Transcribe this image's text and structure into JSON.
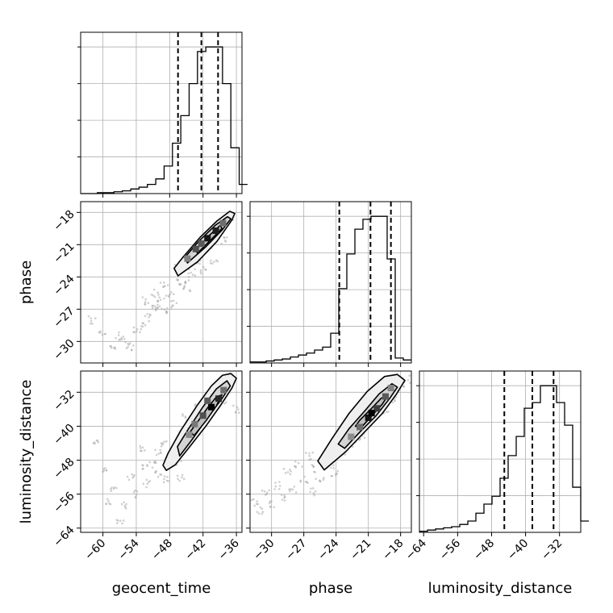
{
  "chart_data": {
    "type": "corner",
    "grid": true,
    "parameters": [
      {
        "name": "geocent_time",
        "range": [
          -64,
          -35
        ],
        "ticks": [
          -60,
          -54,
          -48,
          -42,
          -36
        ],
        "tick_labels": [
          "−60",
          "−54",
          "−48",
          "−42",
          "−36"
        ],
        "quantiles": [
          -46.5,
          -42.3,
          -39.3
        ],
        "histogram": {
          "bin_width": 1.5,
          "counts": [
            0,
            0,
            1,
            1,
            2,
            3,
            5,
            7,
            10,
            16,
            30,
            55,
            85,
            120,
            155,
            160,
            160,
            120,
            50,
            10
          ]
        }
      },
      {
        "name": "phase",
        "range": [
          -32,
          -17
        ],
        "ticks": [
          -30,
          -27,
          -24,
          -21,
          -18
        ],
        "tick_labels": [
          "−30",
          "−27",
          "−24",
          "−21",
          "−18"
        ],
        "quantiles": [
          -23.7,
          -20.8,
          -18.9
        ],
        "histogram": {
          "bin_width": 0.75,
          "counts": [
            1,
            1,
            2,
            3,
            4,
            6,
            8,
            10,
            13,
            16,
            30,
            75,
            110,
            135,
            145,
            148,
            148,
            105,
            5,
            3
          ]
        }
      },
      {
        "name": "luminosity_distance",
        "range": [
          -65,
          -27
        ],
        "ticks": [
          -64,
          -56,
          -48,
          -40,
          -32
        ],
        "tick_labels": [
          "−64",
          "−56",
          "−48",
          "−40",
          "−32"
        ],
        "quantiles": [
          -45,
          -38.4,
          -33.4
        ],
        "histogram": {
          "bin_width": 1.9,
          "counts": [
            1,
            2,
            3,
            4,
            5,
            7,
            10,
            17,
            25,
            32,
            48,
            68,
            85,
            110,
            115,
            130,
            130,
            115,
            95,
            40,
            10
          ]
        }
      }
    ],
    "pair_plots": [
      {
        "x": "geocent_time",
        "y": "phase",
        "scatter_samples": [
          [
            -44,
            -23.6
          ],
          [
            -46,
            -24.5
          ],
          [
            -48,
            -25.5
          ],
          [
            -50,
            -26.8
          ],
          [
            -52,
            -27.8
          ],
          [
            -54,
            -29
          ],
          [
            -56,
            -30
          ],
          [
            -58,
            -30.8
          ],
          [
            -60,
            -29
          ],
          [
            -62,
            -28
          ],
          [
            -47,
            -26.5
          ],
          [
            -49,
            -24.8
          ],
          [
            -51,
            -27
          ],
          [
            -53,
            -28.5
          ],
          [
            -55,
            -30.5
          ],
          [
            -45,
            -25.2
          ],
          [
            -43,
            -22.5
          ],
          [
            -41,
            -21
          ],
          [
            -39,
            -19.8
          ],
          [
            -37,
            -18.6
          ],
          [
            -42,
            -23.4
          ],
          [
            -40,
            -22.6
          ],
          [
            -38,
            -20.6
          ],
          [
            -50.5,
            -25.5
          ],
          [
            -48.5,
            -27
          ],
          [
            -57,
            -29.5
          ],
          [
            -46.5,
            -23.2
          ],
          [
            -52.5,
            -26.2
          ],
          [
            -44.5,
            -24.3
          ],
          [
            -49.5,
            -26.1
          ]
        ],
        "contours": [
          [
            [
              -46.5,
              -23.9
            ],
            [
              -43,
              -22.6
            ],
            [
              -39.5,
              -20.7
            ],
            [
              -36.8,
              -18.7
            ],
            [
              -36.3,
              -18.1
            ],
            [
              -37.2,
              -17.9
            ],
            [
              -39.5,
              -18.8
            ],
            [
              -42.5,
              -20.3
            ],
            [
              -45.5,
              -22.1
            ],
            [
              -47.2,
              -23.2
            ]
          ],
          [
            [
              -44.8,
              -22.7
            ],
            [
              -41.5,
              -21.2
            ],
            [
              -38.5,
              -19.6
            ],
            [
              -37,
              -18.6
            ],
            [
              -37.6,
              -18.4
            ],
            [
              -39.8,
              -19.2
            ],
            [
              -42.8,
              -20.7
            ],
            [
              -45.3,
              -22.2
            ]
          ],
          [
            [
              -43,
              -21.8
            ],
            [
              -40.5,
              -20.5
            ],
            [
              -38.6,
              -19.5
            ],
            [
              -38.9,
              -19.2
            ],
            [
              -40.8,
              -20.1
            ],
            [
              -43.3,
              -21.5
            ]
          ]
        ],
        "density_cells": [
          [
            -43.3,
            -21.4,
            0.6
          ],
          [
            -41.2,
            -20.4,
            0.9
          ],
          [
            -39.7,
            -19.7,
            0.85
          ],
          [
            -44.8,
            -22.3,
            0.35
          ],
          [
            -38.4,
            -19.0,
            0.45
          ],
          [
            -42.3,
            -20.9,
            0.55
          ]
        ]
      },
      {
        "x": "geocent_time",
        "y": "luminosity_distance",
        "scatter_samples": [
          [
            -48,
            -48
          ],
          [
            -50,
            -51
          ],
          [
            -52,
            -53.5
          ],
          [
            -54,
            -56
          ],
          [
            -56,
            -58.5
          ],
          [
            -58,
            -55
          ],
          [
            -60,
            -50
          ],
          [
            -61,
            -44
          ],
          [
            -53,
            -45.5
          ],
          [
            -49,
            -44
          ],
          [
            -45,
            -38
          ],
          [
            -43,
            -35.5
          ],
          [
            -41,
            -33.5
          ],
          [
            -39,
            -31
          ],
          [
            -37,
            -28.5
          ],
          [
            -36,
            -36
          ],
          [
            -55,
            -52
          ],
          [
            -51,
            -49
          ],
          [
            -47,
            -46
          ],
          [
            -46,
            -52
          ],
          [
            -50,
            -46
          ],
          [
            -44,
            -42
          ],
          [
            -57,
            -62
          ],
          [
            -59,
            -58
          ],
          [
            -52.5,
            -49.5
          ],
          [
            -48.5,
            -52.5
          ],
          [
            -46.5,
            -48.5
          ],
          [
            -42.5,
            -38
          ],
          [
            -40.5,
            -37.5
          ],
          [
            -38.5,
            -34
          ]
        ],
        "contours": [
          [
            [
              -48.6,
              -50.4
            ],
            [
              -47,
              -49.1
            ],
            [
              -44.5,
              -45
            ],
            [
              -41.5,
              -40
            ],
            [
              -38.8,
              -35
            ],
            [
              -36.8,
              -31
            ],
            [
              -36,
              -28.7
            ],
            [
              -37,
              -27.6
            ],
            [
              -38.5,
              -28
            ],
            [
              -40.5,
              -30.5
            ],
            [
              -43,
              -35
            ],
            [
              -46,
              -41
            ],
            [
              -48.3,
              -46.4
            ],
            [
              -49.2,
              -49.2
            ]
          ],
          [
            [
              -46.2,
              -47
            ],
            [
              -44,
              -43.2
            ],
            [
              -41.2,
              -38
            ],
            [
              -38.6,
              -33.5
            ],
            [
              -37.1,
              -30.5
            ],
            [
              -37.7,
              -29.3
            ],
            [
              -39.6,
              -31.2
            ],
            [
              -42.1,
              -35.6
            ],
            [
              -44.6,
              -40.6
            ],
            [
              -46.6,
              -44.8
            ]
          ],
          [
            [
              -43.6,
              -42.2
            ],
            [
              -41.4,
              -38.6
            ],
            [
              -39.6,
              -35.2
            ],
            [
              -38.6,
              -32.6
            ],
            [
              -39.6,
              -33.1
            ],
            [
              -41.2,
              -35.7
            ],
            [
              -43,
              -39
            ],
            [
              -44.3,
              -41.3
            ]
          ]
        ],
        "density_cells": [
          [
            -40.5,
            -35.5,
            1.0
          ],
          [
            -42.0,
            -37.5,
            0.6
          ],
          [
            -39.2,
            -33.5,
            0.8
          ],
          [
            -43.5,
            -39.5,
            0.4
          ],
          [
            -41.2,
            -34.0,
            0.55
          ],
          [
            -38.3,
            -31.5,
            0.45
          ],
          [
            -44.5,
            -42.0,
            0.3
          ]
        ]
      },
      {
        "x": "phase",
        "y": "luminosity_distance",
        "scatter_samples": [
          [
            -26,
            -50
          ],
          [
            -27,
            -52.5
          ],
          [
            -28,
            -55
          ],
          [
            -29,
            -57
          ],
          [
            -30,
            -58.5
          ],
          [
            -31,
            -60
          ],
          [
            -25,
            -47
          ],
          [
            -24,
            -45.5
          ],
          [
            -23,
            -43
          ],
          [
            -22,
            -41
          ],
          [
            -20,
            -36
          ],
          [
            -19,
            -33
          ],
          [
            -18,
            -30
          ],
          [
            -17.5,
            -29
          ],
          [
            -26.5,
            -47
          ],
          [
            -25.5,
            -53
          ],
          [
            -28.5,
            -51
          ],
          [
            -24.5,
            -49
          ],
          [
            -21.5,
            -42.5
          ],
          [
            -20.5,
            -38.5
          ],
          [
            -29.5,
            -54
          ],
          [
            -23.5,
            -46.5
          ],
          [
            -22.5,
            -44
          ],
          [
            -18.5,
            -33.5
          ],
          [
            -27.5,
            -49
          ],
          [
            -30.5,
            -56
          ],
          [
            -26.2,
            -55.5
          ],
          [
            -24.2,
            -51.5
          ],
          [
            -19.5,
            -36.5
          ],
          [
            -31.5,
            -58
          ]
        ],
        "contours": [
          [
            [
              -25.1,
              -50.3
            ],
            [
              -23.1,
              -46
            ],
            [
              -21.4,
              -41.5
            ],
            [
              -19.7,
              -37
            ],
            [
              -18.4,
              -32.5
            ],
            [
              -17.6,
              -29.2
            ],
            [
              -18.3,
              -27.8
            ],
            [
              -19.5,
              -28.3
            ],
            [
              -21.1,
              -31.8
            ],
            [
              -22.8,
              -37
            ],
            [
              -24.4,
              -43
            ],
            [
              -25.7,
              -48.2
            ]
          ],
          [
            [
              -23.2,
              -45.2
            ],
            [
              -21.8,
              -41.4
            ],
            [
              -20.3,
              -37.6
            ],
            [
              -19,
              -33.4
            ],
            [
              -18.3,
              -30.8
            ],
            [
              -18.8,
              -30
            ],
            [
              -20,
              -32.4
            ],
            [
              -21.4,
              -36.6
            ],
            [
              -22.8,
              -40.6
            ],
            [
              -23.8,
              -44.2
            ]
          ],
          [
            [
              -21.7,
              -40.4
            ],
            [
              -20.7,
              -37.6
            ],
            [
              -19.7,
              -34.8
            ],
            [
              -19.2,
              -32.8
            ],
            [
              -19.8,
              -33.4
            ],
            [
              -20.7,
              -35.8
            ],
            [
              -21.8,
              -38.6
            ],
            [
              -22.2,
              -40
            ]
          ]
        ],
        "density_cells": [
          [
            -21.0,
            -38.0,
            0.9
          ],
          [
            -20.2,
            -35.8,
            0.7
          ],
          [
            -19.4,
            -33.0,
            0.55
          ],
          [
            -21.8,
            -40.2,
            0.45
          ],
          [
            -20.7,
            -36.9,
            1.0
          ],
          [
            -22.6,
            -42.5,
            0.3
          ],
          [
            -18.9,
            -31.0,
            0.35
          ]
        ]
      }
    ]
  }
}
